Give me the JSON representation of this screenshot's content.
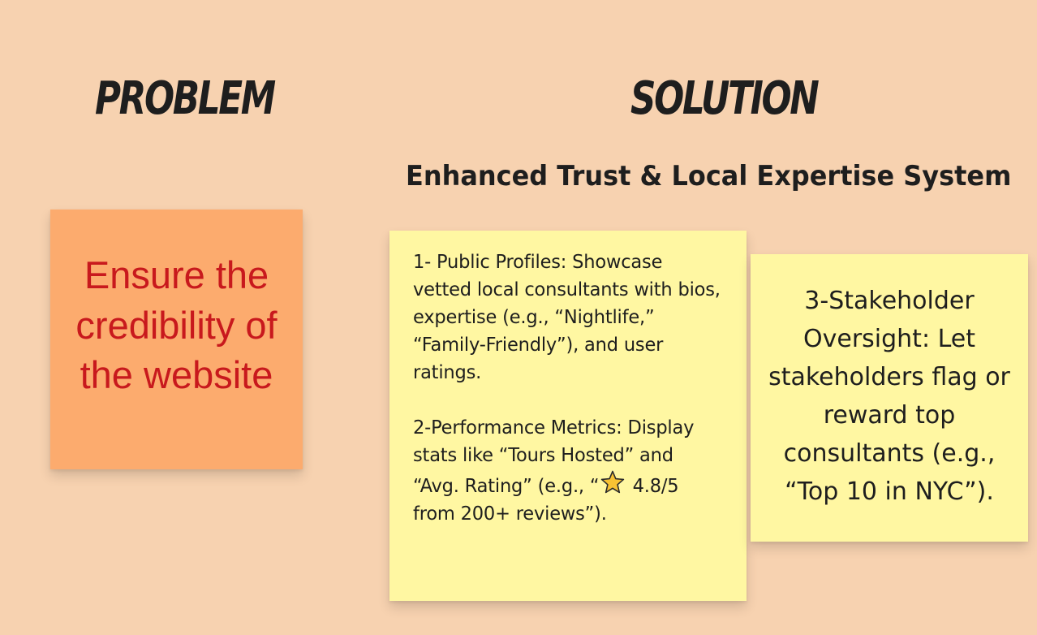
{
  "headings": {
    "problem": "PROBLEM",
    "solution": "SOLUTION"
  },
  "subtitle": "Enhanced Trust & Local Expertise System",
  "notes": {
    "problem": {
      "text": "Ensure the credibility of the website",
      "color": "#fcab6e",
      "text_color": "#c8191d"
    },
    "solution_a": {
      "point1": "1- Public Profiles: Showcase vetted local consultants with bios, expertise (e.g., “Nightlife,” “Family-Friendly”), and user ratings.",
      "point2_before": "2-Performance Metrics: Display stats like “Tours Hosted” and “Avg. Rating” (e.g., “",
      "point2_icon": "star-icon",
      "point2_after": " 4.8/5 from 200+ reviews”).",
      "color": "#fff7a2"
    },
    "solution_b": {
      "text": "3-Stakeholder Oversight: Let stakeholders flag or reward top consultants (e.g., “Top 10 in NYC”).",
      "color": "#fff7a2"
    }
  },
  "colors": {
    "background": "#f7d2b0",
    "heading_text": "#1e1e1e"
  }
}
